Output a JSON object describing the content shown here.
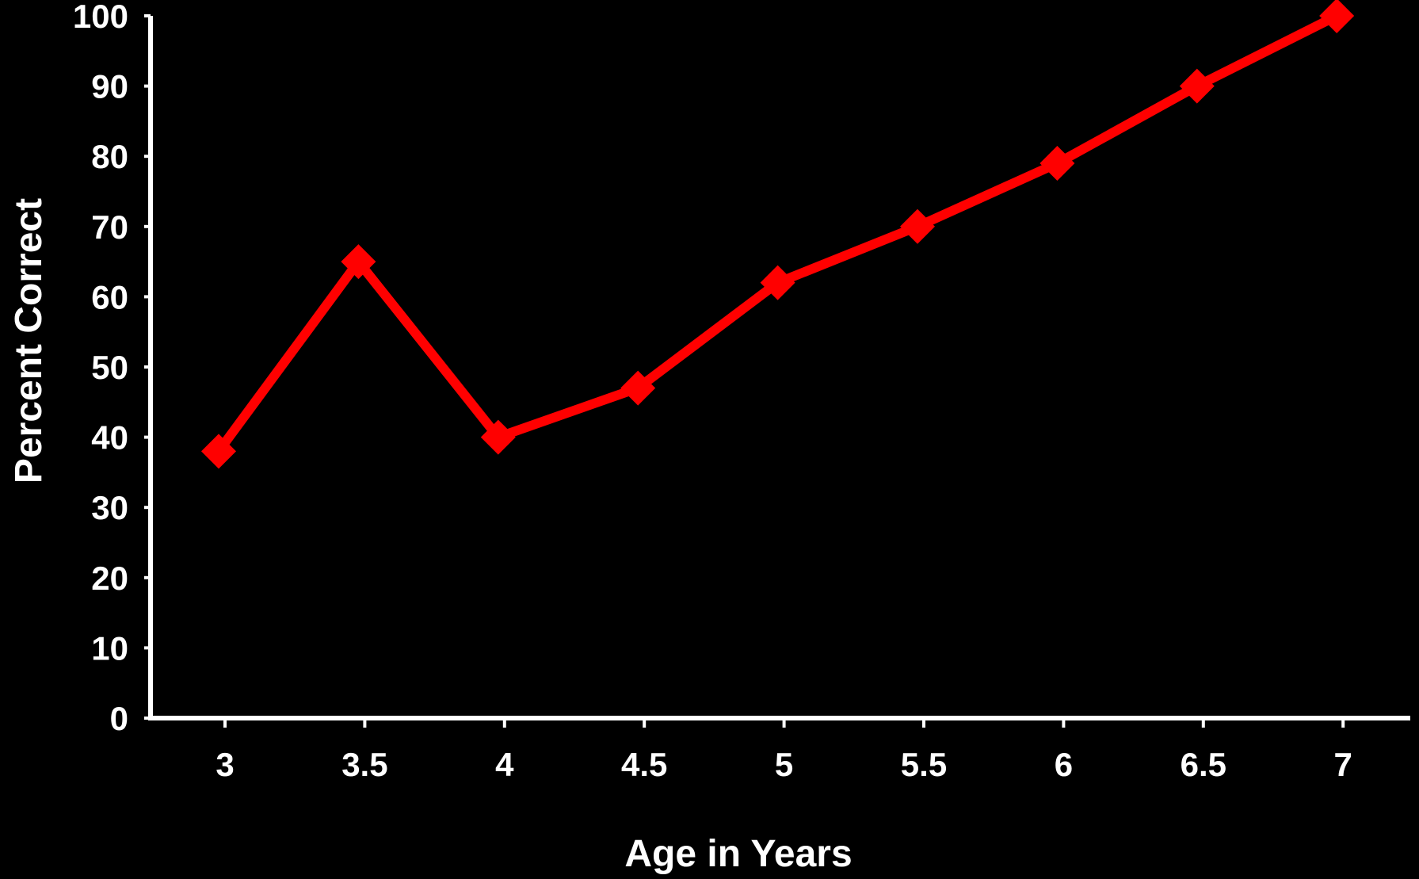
{
  "chart_data": {
    "type": "line",
    "title": "",
    "xlabel": "Age in Years",
    "ylabel": "Percent Correct",
    "categories": [
      "3",
      "3.5",
      "4",
      "4.5",
      "5",
      "5.5",
      "6",
      "6.5",
      "7"
    ],
    "y_ticks": [
      "0",
      "10",
      "20",
      "30",
      "40",
      "50",
      "60",
      "70",
      "80",
      "90",
      "100"
    ],
    "ylim": [
      0,
      100
    ],
    "grid": false,
    "legend": "none",
    "series": [
      {
        "values": [
          38,
          65,
          40,
          47,
          62,
          70,
          79,
          90,
          100
        ]
      }
    ],
    "colors": {
      "background": "#000000",
      "axis": "#ffffff",
      "text": "#ffffff",
      "series": "#ff0000"
    }
  }
}
